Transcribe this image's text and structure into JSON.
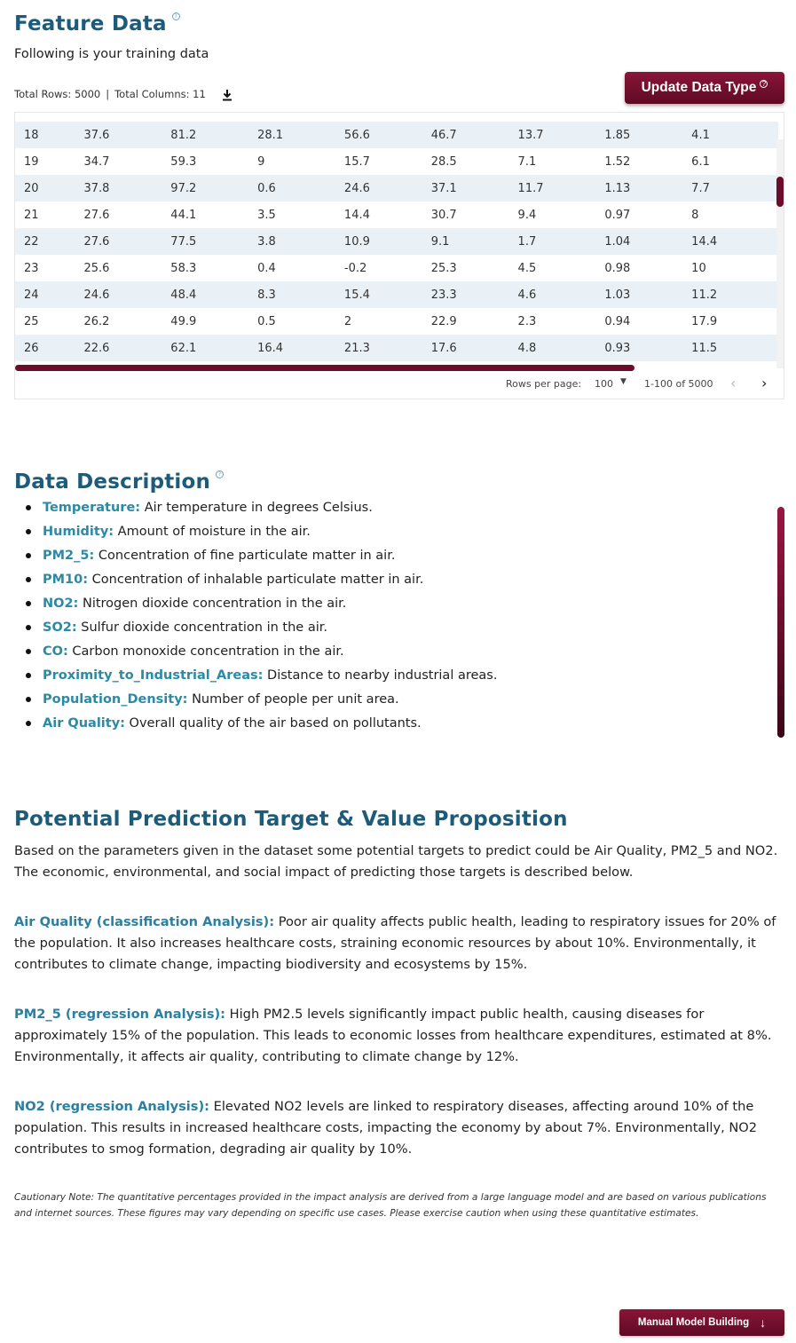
{
  "feature_data": {
    "title": "Feature Data",
    "subtitle": "Following is your training data",
    "total_rows": "Total Rows: 5000",
    "separator": "|",
    "total_columns": "Total Columns: 11",
    "update_button": "Update Data Type",
    "rows": [
      [
        "18",
        "37.6",
        "81.2",
        "28.1",
        "56.6",
        "46.7",
        "13.7",
        "1.85",
        "4.1"
      ],
      [
        "19",
        "34.7",
        "59.3",
        "9",
        "15.7",
        "28.5",
        "7.1",
        "1.52",
        "6.1"
      ],
      [
        "20",
        "37.8",
        "97.2",
        "0.6",
        "24.6",
        "37.1",
        "11.7",
        "1.13",
        "7.7"
      ],
      [
        "21",
        "27.6",
        "44.1",
        "3.5",
        "14.4",
        "30.7",
        "9.4",
        "0.97",
        "8"
      ],
      [
        "22",
        "27.6",
        "77.5",
        "3.8",
        "10.9",
        "9.1",
        "1.7",
        "1.04",
        "14.4"
      ],
      [
        "23",
        "25.6",
        "58.3",
        "0.4",
        "-0.2",
        "25.3",
        "4.5",
        "0.98",
        "10"
      ],
      [
        "24",
        "24.6",
        "48.4",
        "8.3",
        "15.4",
        "23.3",
        "4.6",
        "1.03",
        "11.2"
      ],
      [
        "25",
        "26.2",
        "49.9",
        "0.5",
        "2",
        "22.9",
        "2.3",
        "0.94",
        "17.9"
      ],
      [
        "26",
        "22.6",
        "62.1",
        "16.4",
        "21.3",
        "17.6",
        "4.8",
        "0.93",
        "11.5"
      ]
    ],
    "pager": {
      "rows_per_page_label": "Rows per page:",
      "rows_per_page_value": "100",
      "range": "1-100 of 5000",
      "prev": "‹",
      "next": "›"
    }
  },
  "data_description": {
    "title": "Data Description",
    "items": [
      {
        "term": "Temperature:",
        "desc": " Air temperature in degrees Celsius."
      },
      {
        "term": "Humidity:",
        "desc": " Amount of moisture in the air."
      },
      {
        "term": "PM2_5:",
        "desc": " Concentration of fine particulate matter in air."
      },
      {
        "term": "PM10:",
        "desc": " Concentration of inhalable particulate matter in air."
      },
      {
        "term": "NO2:",
        "desc": " Nitrogen dioxide concentration in the air."
      },
      {
        "term": "SO2:",
        "desc": " Sulfur dioxide concentration in the air."
      },
      {
        "term": "CO:",
        "desc": " Carbon monoxide concentration in the air."
      },
      {
        "term": "Proximity_to_Industrial_Areas:",
        "desc": " Distance to nearby industrial areas."
      },
      {
        "term": "Population_Density:",
        "desc": " Number of people per unit area."
      },
      {
        "term": "Air Quality:",
        "desc": " Overall quality of the air based on pollutants."
      }
    ]
  },
  "prediction": {
    "title": "Potential Prediction Target & Value Proposition",
    "intro": "Based on the parameters given in the dataset some potential targets to predict could be Air Quality, PM2_5 and NO2. The economic, environmental, and social impact of predicting those targets is described below.",
    "air_quality": {
      "lead": "Air Quality (classification Analysis):",
      "text": " Poor air quality affects public health, leading to respiratory issues for 20% of the population. It also increases healthcare costs, straining economic resources by about 10%. Environmentally, it contributes to climate change, impacting biodiversity and ecosystems by 15%."
    },
    "pm25": {
      "lead": "PM2_5 (regression Analysis):",
      "text": " High PM2.5 levels significantly impact public health, causing diseases for approximately 15% of the population. This leads to economic losses from healthcare expenditures, estimated at 8%. Environmentally, it affects air quality, contributing to climate change by 12%."
    },
    "no2": {
      "lead": "NO2 (regression Analysis):",
      "text": " Elevated NO2 levels are linked to respiratory diseases, affecting around 10% of the population. This results in increased healthcare costs, impacting the economy by about 7%. Environmentally, NO2 contributes to smog formation, degrading air quality by 10%."
    },
    "caution": "Cautionary Note: The quantitative percentages provided in the impact analysis are derived from a large language model and are based on various publications and internet sources. These figures may vary depending on specific use cases. Please exercise caution when using these quantitative estimates."
  },
  "manual_button": "Manual Model Building",
  "icons": {
    "help": "help-circle-icon",
    "download": "download-icon",
    "arrow_down": "arrow-down-icon",
    "dropdown": "caret-down-icon"
  },
  "colors": {
    "heading": "#1d5b7a",
    "term": "#2b8aa6",
    "accent": "#7a1232",
    "row_stripe": "#e9f1f6"
  }
}
